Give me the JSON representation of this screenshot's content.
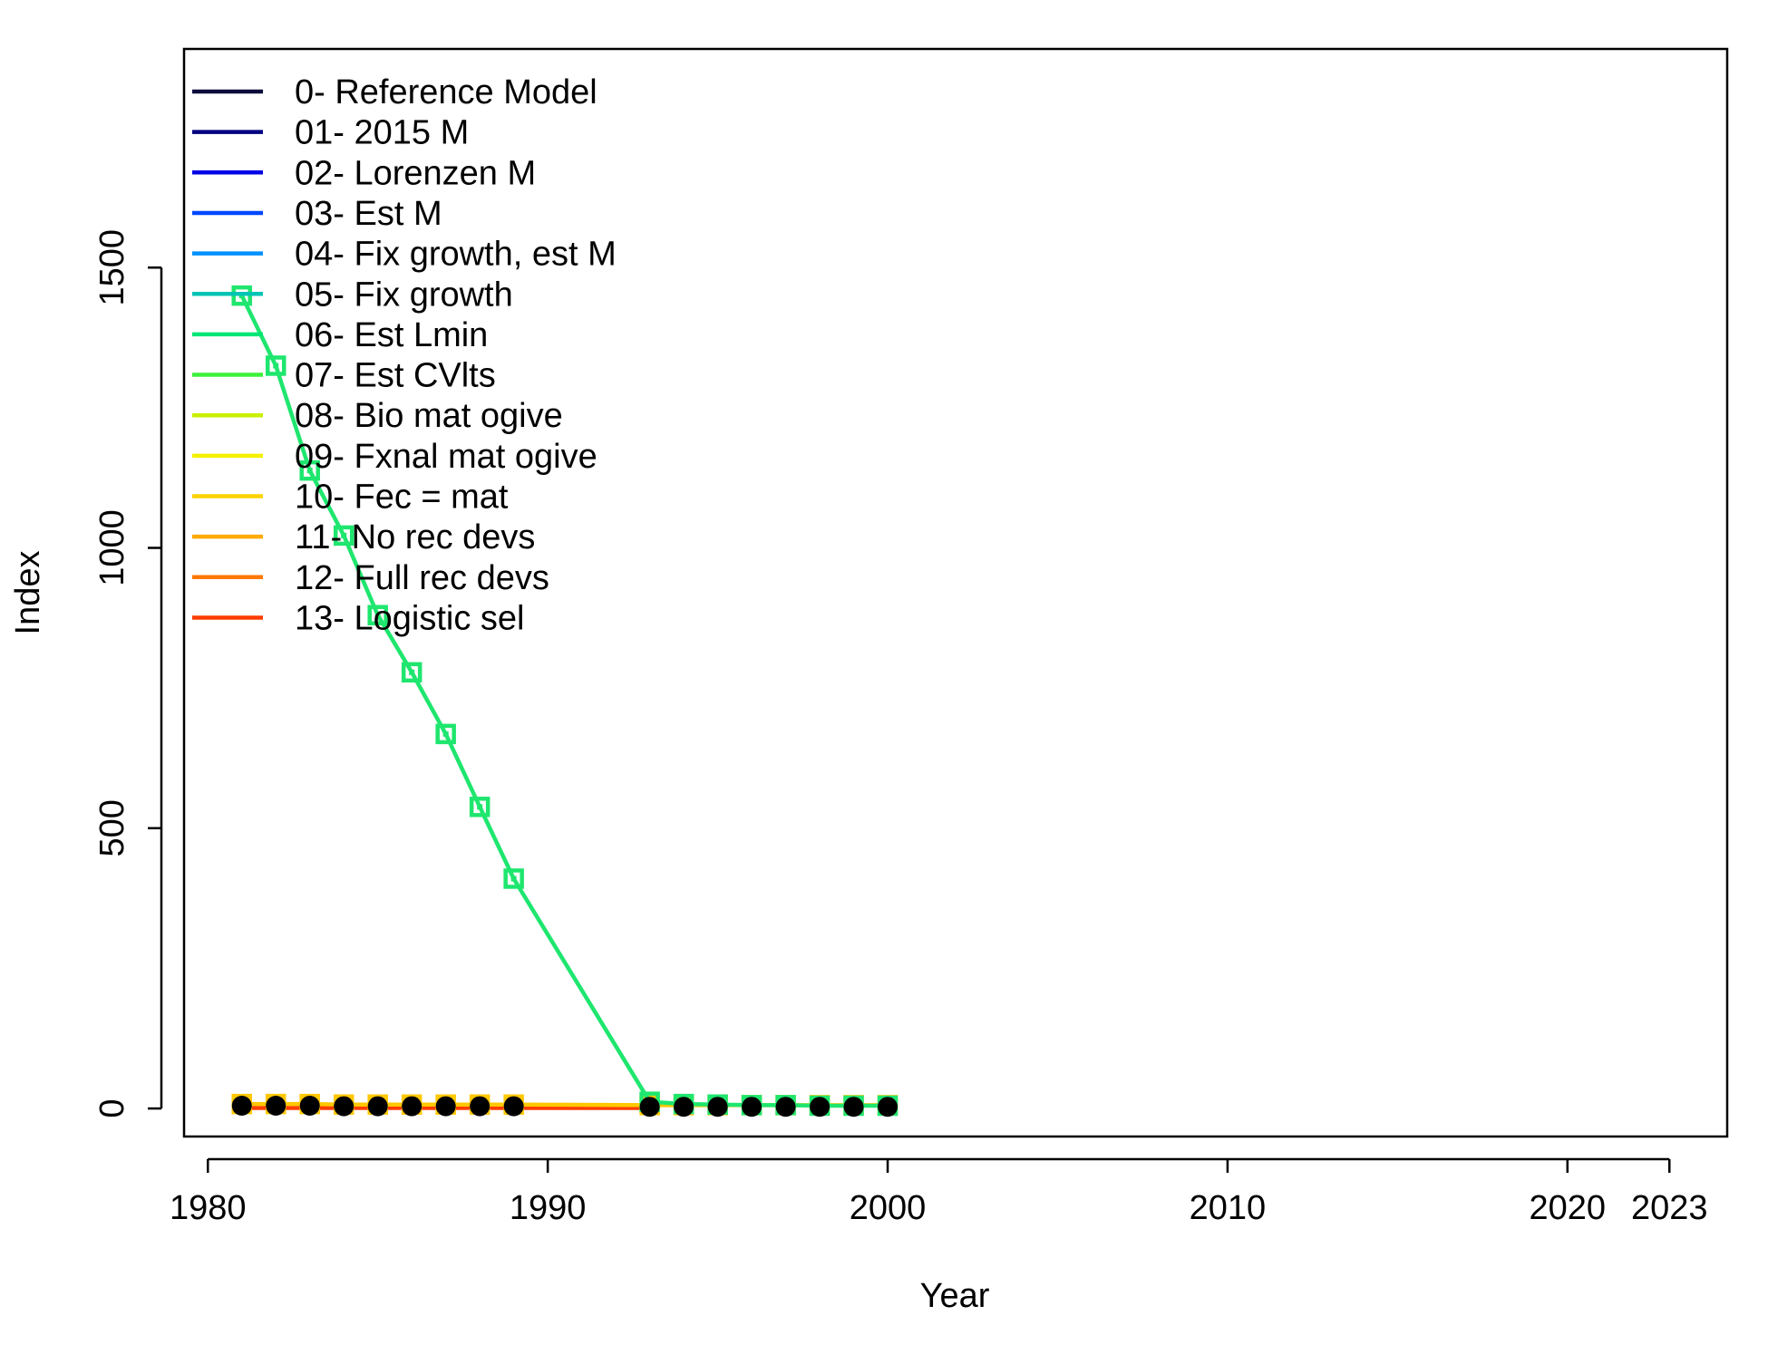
{
  "chart_data": {
    "type": "line",
    "title": "",
    "xlabel": "Year",
    "ylabel": "Index",
    "xlim": [
      1979.3,
      2024.7
    ],
    "ylim": [
      -50,
      1890
    ],
    "x_ticks": [
      1980,
      1990,
      2000,
      2010,
      2020,
      2023
    ],
    "x_tick_labels": [
      "1980",
      "1990",
      "2000",
      "2010",
      "2020",
      "2023"
    ],
    "y_ticks": [
      0,
      500,
      1000,
      1500
    ],
    "y_tick_labels": [
      "0",
      "500",
      "1000",
      "1500"
    ],
    "grid": false,
    "legend_position": "top-left",
    "legend": [
      {
        "label": "0- Reference Model",
        "color": "#0b0b3c"
      },
      {
        "label": "01- 2015 M",
        "color": "#00007f"
      },
      {
        "label": "02- Lorenzen M",
        "color": "#0000e6"
      },
      {
        "label": "03- Est M",
        "color": "#0047ff"
      },
      {
        "label": "04- Fix growth, est M",
        "color": "#0090ff"
      },
      {
        "label": "05- Fix growth",
        "color": "#00c4b4"
      },
      {
        "label": "06- Est Lmin",
        "color": "#00e676"
      },
      {
        "label": "07- Est CVlts",
        "color": "#3cf03c"
      },
      {
        "label": "08- Bio mat ogive",
        "color": "#c8f000"
      },
      {
        "label": "09- Fxnal mat ogive",
        "color": "#f5f000"
      },
      {
        "label": "10- Fec = mat",
        "color": "#ffd200"
      },
      {
        "label": "11- No rec devs",
        "color": "#ffaa00"
      },
      {
        "label": "12- Full rec devs",
        "color": "#ff7800"
      },
      {
        "label": "13- Logistic sel",
        "color": "#ff3c00"
      }
    ],
    "series": [
      {
        "color": "#1ee66e",
        "marker": "square",
        "x": [
          1981,
          1982,
          1983,
          1984,
          1985,
          1986,
          1987,
          1988,
          1989,
          1993,
          1994,
          1995,
          1996,
          1997,
          1998,
          1999,
          2000
        ],
        "y": [
          1450,
          1325,
          1138,
          1022,
          880,
          778,
          668,
          538,
          410,
          12,
          8,
          7,
          6,
          6,
          5,
          5,
          5
        ]
      },
      {
        "color": "#ffc800",
        "marker": "square",
        "x": [
          1981,
          1982,
          1983,
          1984,
          1985,
          1986,
          1987,
          1988,
          1989,
          1993,
          1994,
          1995,
          1996,
          1997,
          1998,
          1999,
          2000
        ],
        "y": [
          8,
          8,
          8,
          7,
          7,
          7,
          7,
          7,
          7,
          6,
          6,
          6,
          6,
          6,
          6,
          6,
          6
        ]
      },
      {
        "color": "#ff3c00",
        "marker": "none",
        "x": [
          1981,
          1993
        ],
        "y": [
          1,
          1
        ]
      }
    ],
    "observed": {
      "color": "#000000",
      "marker": "circle",
      "x": [
        1981,
        1982,
        1983,
        1984,
        1985,
        1986,
        1987,
        1988,
        1989,
        1993,
        1994,
        1995,
        1996,
        1997,
        1998,
        1999,
        2000
      ],
      "y": [
        5,
        5,
        5,
        4,
        4,
        4,
        4,
        4,
        4,
        3,
        3,
        3,
        3,
        3,
        3,
        3,
        3
      ]
    }
  }
}
